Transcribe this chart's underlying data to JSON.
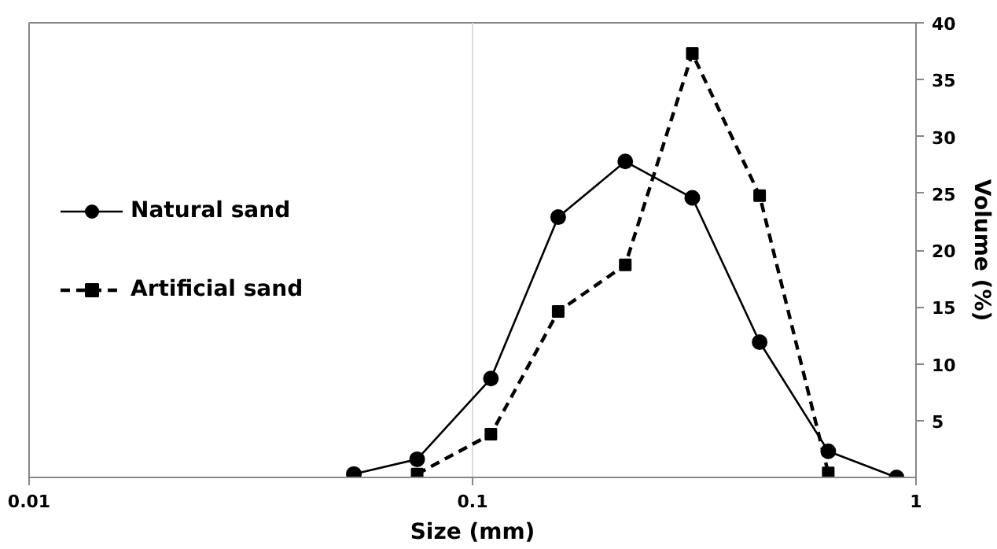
{
  "chart_data": {
    "type": "line",
    "xlabel": "Size (mm)",
    "ylabel": "Volume (%)",
    "log": "x",
    "xlim": [
      0.01,
      1
    ],
    "xticks": [
      0.01,
      0.1,
      1
    ],
    "ylim": [
      0,
      40
    ],
    "yticks": [
      5,
      10,
      15,
      20,
      25,
      30,
      35,
      40
    ],
    "grid": "x",
    "legend": "left",
    "series": [
      {
        "name": "Natural sand",
        "color": "#000000",
        "marker": "circle",
        "line_style": "solid",
        "x": [
          0.054,
          0.075,
          0.11,
          0.156,
          0.221,
          0.313,
          0.444,
          0.634,
          0.904
        ],
        "values": [
          0.3,
          1.6,
          8.7,
          22.9,
          27.8,
          24.6,
          11.9,
          2.3,
          0
        ]
      },
      {
        "name": "Artificial sand",
        "color": "#000000",
        "marker": "square",
        "line_style": "dashed",
        "x": [
          0.075,
          0.11,
          0.156,
          0.221,
          0.313,
          0.444,
          0.634
        ],
        "values": [
          0.3,
          3.8,
          14.6,
          18.7,
          37.3,
          24.8,
          0.4
        ]
      }
    ]
  }
}
